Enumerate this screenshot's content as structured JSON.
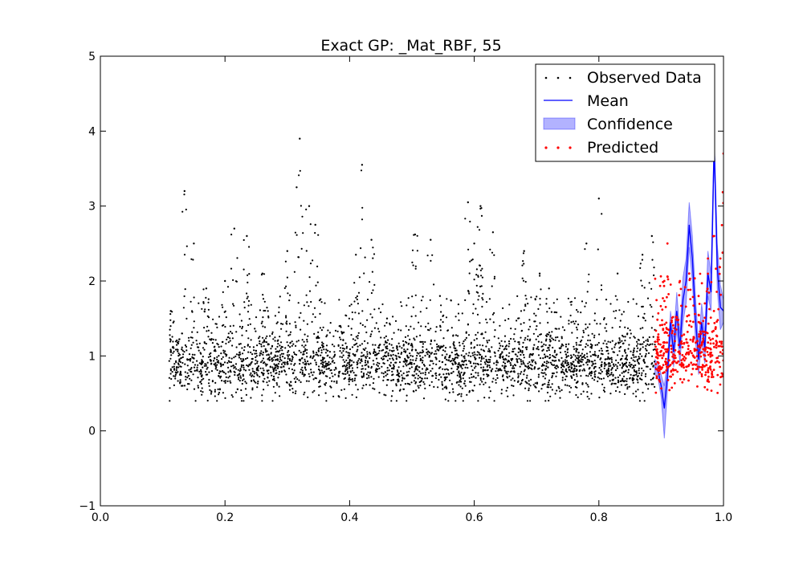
{
  "chart_data": {
    "type": "scatter",
    "title": "Exact GP: _Mat_RBF, 55",
    "xlabel": "",
    "ylabel": "",
    "xlim": [
      0.0,
      1.0
    ],
    "ylim": [
      -1,
      5
    ],
    "grid": false,
    "legend_position": "top-right",
    "x_ticks": [
      "0.0",
      "0.2",
      "0.4",
      "0.6",
      "0.8",
      "1.0"
    ],
    "y_ticks": [
      "−1",
      "0",
      "1",
      "2",
      "3",
      "4",
      "5"
    ],
    "observed_range": [
      0.11,
      0.89
    ],
    "predicted_range": [
      0.89,
      1.0
    ],
    "series": [
      {
        "name": "Observed Data",
        "kind": "points",
        "color": "#000000",
        "peaks": [
          [
            0.113,
            1.6
          ],
          [
            0.135,
            3.2
          ],
          [
            0.15,
            2.5
          ],
          [
            0.17,
            1.9
          ],
          [
            0.2,
            2.0
          ],
          [
            0.215,
            2.7
          ],
          [
            0.235,
            2.6
          ],
          [
            0.26,
            2.1
          ],
          [
            0.3,
            2.4
          ],
          [
            0.315,
            3.25
          ],
          [
            0.32,
            3.9
          ],
          [
            0.335,
            3.0
          ],
          [
            0.345,
            2.75
          ],
          [
            0.385,
            1.4
          ],
          [
            0.41,
            2.35
          ],
          [
            0.42,
            3.55
          ],
          [
            0.435,
            2.55
          ],
          [
            0.46,
            1.5
          ],
          [
            0.505,
            2.62
          ],
          [
            0.53,
            2.55
          ],
          [
            0.545,
            1.8
          ],
          [
            0.59,
            3.05
          ],
          [
            0.6,
            2.5
          ],
          [
            0.61,
            3.0
          ],
          [
            0.63,
            2.65
          ],
          [
            0.68,
            2.4
          ],
          [
            0.705,
            2.1
          ],
          [
            0.72,
            1.9
          ],
          [
            0.78,
            2.5
          ],
          [
            0.8,
            3.1
          ],
          [
            0.83,
            2.1
          ],
          [
            0.87,
            2.35
          ],
          [
            0.885,
            2.6
          ]
        ]
      },
      {
        "name": "Mean",
        "kind": "line",
        "color": "#0000ff",
        "x": [
          0.89,
          0.895,
          0.9,
          0.905,
          0.91,
          0.915,
          0.92,
          0.925,
          0.93,
          0.935,
          0.94,
          0.945,
          0.95,
          0.955,
          0.96,
          0.965,
          0.97,
          0.975,
          0.98,
          0.985,
          0.99,
          0.995,
          1.0
        ],
        "y": [
          0.85,
          0.8,
          0.6,
          0.3,
          0.75,
          1.45,
          1.05,
          1.6,
          1.1,
          1.75,
          2.0,
          2.75,
          2.3,
          1.5,
          0.95,
          1.45,
          1.1,
          2.1,
          1.85,
          3.85,
          2.2,
          1.65,
          1.6
        ]
      },
      {
        "name": "Confidence",
        "kind": "band",
        "color": "#0000ff",
        "opacity": 0.3,
        "upper": [
          0.95,
          0.9,
          0.75,
          0.6,
          0.95,
          1.6,
          1.25,
          1.85,
          1.3,
          2.05,
          2.3,
          3.05,
          2.6,
          1.8,
          1.15,
          1.7,
          1.3,
          2.4,
          2.1,
          3.95,
          2.5,
          1.95,
          1.75
        ],
        "lower": [
          0.75,
          0.7,
          0.45,
          -0.1,
          0.55,
          1.3,
          0.85,
          1.35,
          0.9,
          1.45,
          1.7,
          2.45,
          2.0,
          1.2,
          0.75,
          1.2,
          0.9,
          1.8,
          1.6,
          3.7,
          1.9,
          1.35,
          1.45
        ]
      },
      {
        "name": "Predicted",
        "kind": "points",
        "color": "#ff0000",
        "peaks": [
          [
            0.905,
            2.0
          ],
          [
            0.91,
            2.5
          ],
          [
            0.93,
            2.0
          ],
          [
            0.945,
            2.1
          ],
          [
            0.96,
            1.8
          ],
          [
            0.975,
            2.3
          ],
          [
            0.985,
            2.6
          ],
          [
            0.995,
            2.3
          ],
          [
            1.0,
            3.7
          ]
        ]
      }
    ]
  },
  "legend": {
    "observed": "Observed Data",
    "mean": "Mean",
    "confidence": "Confidence",
    "predicted": "Predicted"
  }
}
